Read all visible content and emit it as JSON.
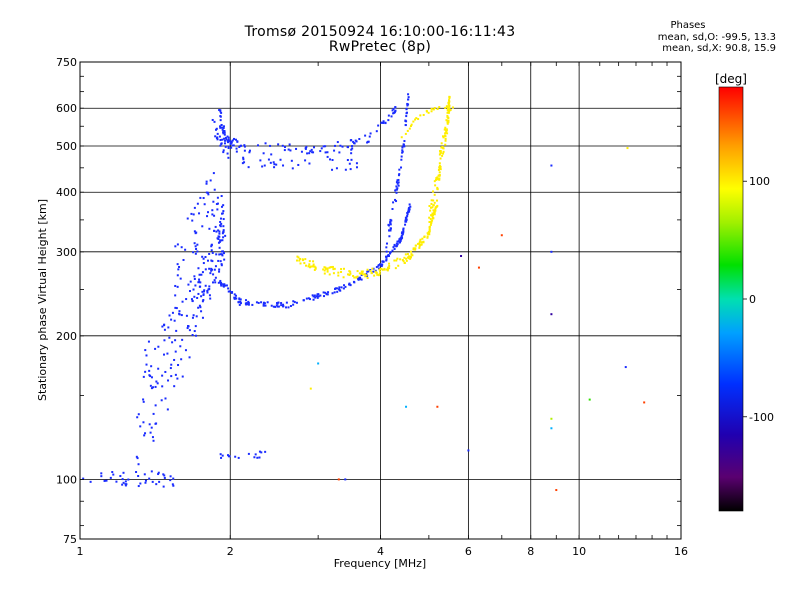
{
  "header": {
    "title": "Tromsø 20150924 16:10:00-16:11:43",
    "subtitle": "RwPretec (8p)"
  },
  "stats": {
    "title": "Phases",
    "line_o": "mean, sd,O: -99.5, 13.3",
    "line_x": "mean, sd,X:  90.8, 15.9"
  },
  "chart_data": {
    "type": "scatter",
    "xlabel": "Frequency [MHz]",
    "ylabel": "Stationary phase Virtual Height [km]",
    "xscale": "log",
    "yscale": "log",
    "xlim": [
      1,
      16
    ],
    "ylim": [
      75,
      750
    ],
    "x_ticks": [
      {
        "label": "1",
        "value": 1
      },
      {
        "label": "2",
        "value": 2
      },
      {
        "label": "4",
        "value": 4
      },
      {
        "label": "6",
        "value": 6
      },
      {
        "label": "8",
        "value": 8
      },
      {
        "label": "10",
        "value": 10
      },
      {
        "label": "16",
        "value": 16
      }
    ],
    "y_ticks": [
      {
        "label": "75",
        "value": 75
      },
      {
        "label": "100",
        "value": 100
      },
      {
        "label": "200",
        "value": 200
      },
      {
        "label": "300",
        "value": 300
      },
      {
        "label": "400",
        "value": 400
      },
      {
        "label": "500",
        "value": 500
      },
      {
        "label": "600",
        "value": 600
      },
      {
        "label": "750",
        "value": 750
      }
    ],
    "x_grid": [
      2,
      4,
      6,
      8,
      10
    ],
    "y_grid": [
      100,
      200,
      300,
      400,
      500,
      600
    ],
    "colorbar": {
      "label": "[deg]",
      "range": [
        -180,
        180
      ],
      "ticks": [
        {
          "label": "100",
          "value": 100
        },
        {
          "label": "0",
          "value": 0
        },
        {
          "label": "-100",
          "value": -100
        }
      ]
    },
    "traces": [
      {
        "type": "band",
        "phase": -100,
        "f": [
          1.0,
          1.3,
          1.55
        ],
        "h": [
          100,
          100,
          100
        ],
        "spread": 4,
        "density": 22,
        "seed": 1
      },
      {
        "type": "band",
        "phase": -100,
        "f": [
          1.3,
          1.45,
          1.6,
          1.75,
          1.85,
          1.95
        ],
        "h": [
          140,
          170,
          200,
          250,
          290,
          330
        ],
        "spread": 40,
        "density": 40,
        "seed": 2
      },
      {
        "type": "band",
        "phase": -100,
        "f": [
          1.55,
          1.7,
          1.85,
          1.95
        ],
        "h": [
          260,
          330,
          400,
          320
        ],
        "spread": 50,
        "density": 24,
        "seed": 3
      },
      {
        "type": "band",
        "phase": -100,
        "f": [
          1.85,
          1.95,
          2.2,
          3.0,
          3.6
        ],
        "h": [
          560,
          500,
          470,
          465,
          470
        ],
        "spread": 25,
        "density": 20,
        "seed": 4
      },
      {
        "type": "band",
        "phase": -100,
        "f": [
          1.9,
          1.95,
          2.1,
          3.0,
          3.8,
          4.3
        ],
        "h": [
          600,
          520,
          500,
          490,
          520,
          600
        ],
        "spread": 10,
        "density": 22,
        "seed": 5
      },
      {
        "type": "band",
        "phase": -100,
        "f": [
          1.9,
          2.1,
          2.6,
          3.3,
          4.0,
          4.4,
          4.6
        ],
        "h": [
          260,
          235,
          232,
          250,
          280,
          320,
          380
        ],
        "spread": 3,
        "density": 36,
        "seed": 6
      },
      {
        "type": "band",
        "phase": -100,
        "f": [
          4.1,
          4.3,
          4.45,
          4.55
        ],
        "h": [
          300,
          400,
          500,
          640
        ],
        "spread": 14,
        "density": 22,
        "seed": 7
      },
      {
        "type": "band",
        "phase": -100,
        "f": [
          1.9,
          2.1,
          2.4
        ],
        "h": [
          112,
          112,
          113
        ],
        "spread": 2,
        "density": 8,
        "seed": 8
      },
      {
        "type": "band",
        "phase": 100,
        "f": [
          2.7,
          3.1,
          3.6,
          4.1,
          4.6,
          5.0,
          5.2
        ],
        "h": [
          290,
          275,
          268,
          275,
          295,
          330,
          380
        ],
        "spread": 6,
        "density": 30,
        "seed": 9
      },
      {
        "type": "band",
        "phase": 100,
        "f": [
          5.0,
          5.2,
          5.3,
          5.45,
          5.5
        ],
        "h": [
          350,
          420,
          480,
          560,
          620
        ],
        "spread": 25,
        "density": 28,
        "seed": 10
      },
      {
        "type": "band",
        "phase": 100,
        "f": [
          4.4,
          4.8,
          5.2,
          5.6
        ],
        "h": [
          520,
          580,
          600,
          600
        ],
        "spread": 6,
        "density": 10,
        "seed": 11
      }
    ],
    "outliers": [
      {
        "x": 3.3,
        "y": 100,
        "phase": 160
      },
      {
        "x": 3.4,
        "y": 100,
        "phase": -100
      },
      {
        "x": 5.8,
        "y": 294,
        "phase": -150
      },
      {
        "x": 6.3,
        "y": 278,
        "phase": 160
      },
      {
        "x": 7.0,
        "y": 325,
        "phase": 160
      },
      {
        "x": 6.0,
        "y": 115,
        "phase": -100
      },
      {
        "x": 8.8,
        "y": 455,
        "phase": -60
      },
      {
        "x": 8.8,
        "y": 300,
        "phase": -60
      },
      {
        "x": 8.8,
        "y": 222,
        "phase": -150
      },
      {
        "x": 8.8,
        "y": 134,
        "phase": 80
      },
      {
        "x": 8.8,
        "y": 128,
        "phase": -20
      },
      {
        "x": 9.0,
        "y": 95,
        "phase": 160
      },
      {
        "x": 12.5,
        "y": 495,
        "phase": 110
      },
      {
        "x": 12.4,
        "y": 172,
        "phase": -120
      },
      {
        "x": 13.5,
        "y": 145,
        "phase": 160
      },
      {
        "x": 10.5,
        "y": 147,
        "phase": 30
      },
      {
        "x": 4.5,
        "y": 142,
        "phase": -40
      },
      {
        "x": 5.2,
        "y": 142,
        "phase": 160
      },
      {
        "x": 3.0,
        "y": 175,
        "phase": -40
      },
      {
        "x": 2.9,
        "y": 155,
        "phase": 120
      }
    ]
  }
}
